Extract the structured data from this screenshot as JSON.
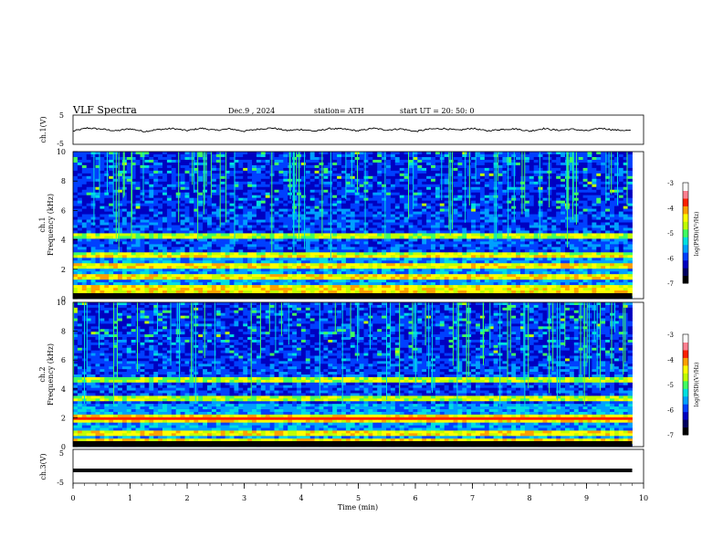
{
  "header": {
    "title": "VLF  Spectra",
    "date": "Dec.9  , 2024",
    "station": "station= ATH",
    "start": "start  UT  =   20: 50: 0"
  },
  "colors": {
    "spectrogram_ramp": [
      "#000000",
      "#000060",
      "#0000c0",
      "#0040ff",
      "#00a0ff",
      "#00e0e0",
      "#40ff60",
      "#c0ff00",
      "#ffff00",
      "#ffa000",
      "#ff2000",
      "#ff8090",
      "#ffffff"
    ],
    "trace": "#000000"
  },
  "chart_data": [
    {
      "type": "line",
      "name": "ch1-waveform",
      "ylabel": "ch.1(V)",
      "yticks": [
        "5",
        "-5"
      ],
      "ylim": [
        -5,
        5
      ],
      "x": [
        0,
        0.25,
        0.5,
        0.75,
        1,
        1.25,
        1.5,
        1.75,
        2,
        2.25,
        2.5,
        2.75,
        3,
        3.25,
        3.5,
        3.75,
        4,
        4.25,
        4.5,
        4.75,
        5,
        5.25,
        5.5,
        5.75,
        6,
        6.25,
        6.5,
        6.75,
        7,
        7.25,
        7.5,
        7.75,
        8,
        8.25,
        8.5,
        8.75,
        9,
        9.25,
        9.5,
        9.8
      ],
      "y": [
        -0.5,
        0.6,
        0.2,
        -0.4,
        0.3,
        -0.6,
        0.1,
        0.4,
        -0.3,
        0.5,
        -0.2,
        0.3,
        -0.5,
        0.2,
        0.6,
        -0.3,
        0.1,
        -0.5,
        0.4,
        0.2,
        -0.4,
        0.5,
        -0.1,
        0.3,
        -0.6,
        0.2,
        0.4,
        -0.2,
        0.5,
        -0.4,
        0.1,
        0.3,
        -0.5,
        0.4,
        -0.2,
        0.2,
        -0.4,
        0.5,
        -0.1,
        -0.3
      ]
    },
    {
      "type": "heatmap",
      "name": "ch1-spectrogram",
      "ylabel_channel": "ch.1",
      "ylabel": "Frequency (kHz)",
      "yticks": [
        "0",
        "2",
        "4",
        "6",
        "8",
        "10"
      ],
      "ylim": [
        0,
        10
      ],
      "colorbar": {
        "label": "log(PSD)(V²/Hz)",
        "ticks": [
          "-3",
          "-4",
          "-5",
          "-6",
          "-7"
        ],
        "range": [
          -7,
          -3
        ]
      },
      "strong_bands_khz": [
        0.3,
        0.8,
        1.4,
        2.3,
        3.0,
        4.3
      ],
      "colorbar_top_note": "-3"
    },
    {
      "type": "heatmap",
      "name": "ch2-spectrogram",
      "ylabel_channel": "ch.2",
      "ylabel": "Frequency (kHz)",
      "yticks": [
        "0",
        "2",
        "4",
        "6",
        "8",
        "10"
      ],
      "ylim": [
        0,
        10
      ],
      "colorbar": {
        "label": "log(PSD)(V²/Hz)",
        "ticks": [
          "-3",
          "-4",
          "-5",
          "-6",
          "-7"
        ],
        "range": [
          -7,
          -3
        ]
      },
      "strong_bands_khz": [
        0.3,
        0.9,
        1.9,
        2.0,
        3.4,
        4.7
      ]
    },
    {
      "type": "line",
      "name": "ch3-waveform",
      "ylabel": "ch.3(V)",
      "yticks": [
        "5",
        "-5"
      ],
      "ylim": [
        -5,
        5
      ],
      "x": [
        0,
        9.8
      ],
      "y": [
        -1.2,
        -1.2
      ]
    }
  ],
  "xaxis": {
    "label": "Time  (min)",
    "ticks": [
      "0",
      "1",
      "2",
      "3",
      "4",
      "5",
      "6",
      "7",
      "8",
      "9",
      "10"
    ],
    "xlim": [
      0,
      10
    ]
  }
}
